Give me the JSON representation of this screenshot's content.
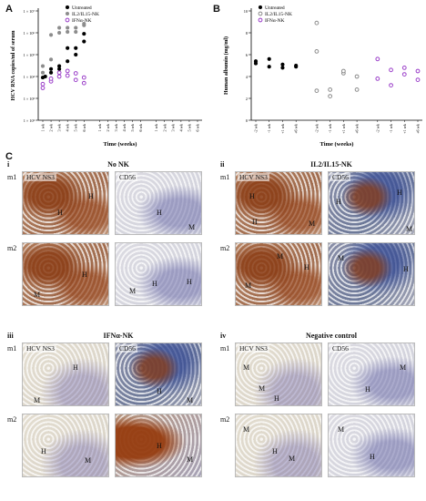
{
  "panel_labels": {
    "a": "A",
    "b": "B",
    "c": "C"
  },
  "colors": {
    "untreated": "#000000",
    "il2": "#8c8c8c",
    "ifn": "#9b3fc9",
    "he_bg": "#e6e1d6",
    "ns3_bg": "#e8ddd0",
    "cd56_bg": "#d7dbe4",
    "brown": "#8a3b13",
    "blue": "#4a5a9a"
  },
  "chart_data": [
    {
      "type": "scatter",
      "panel": "A",
      "ylabel": "HCV RNA copies/ml of serum",
      "xlabel": "Time (weeks)",
      "yscale": "log",
      "ylim": [
        100,
        10000000
      ],
      "ytick_labels": [
        "1 × 10²",
        "1 × 10³",
        "1 × 10⁴",
        "1 × 10⁵",
        "1 × 10⁶",
        "1 × 10⁷"
      ],
      "yticks": [
        100,
        1000,
        10000,
        100000,
        1000000,
        10000000
      ],
      "x_tick_labels": [
        "1 wk",
        "2 wk",
        "3 wk",
        "4 wk",
        "5 wk",
        "6 wk",
        "1 wk",
        "2 wk",
        "3 wk",
        "4 wk",
        "5 wk",
        "6 wk",
        "1 wk",
        "2 wk",
        "3 wk",
        "4 wk",
        "5 wk",
        "6 wk"
      ],
      "series": [
        {
          "name": "Untreated",
          "color": "#000000",
          "fill": true,
          "points": [
            [
              1,
              9000
            ],
            [
              1.3,
              10000
            ],
            [
              2,
              15000
            ],
            [
              2,
              22000
            ],
            [
              3,
              30000
            ],
            [
              3,
              22000
            ],
            [
              4,
              50000
            ],
            [
              4,
              200000
            ],
            [
              5,
              200000
            ],
            [
              5,
              100000
            ],
            [
              6,
              400000
            ],
            [
              6,
              900000
            ]
          ]
        },
        {
          "name": "IL2/IL15-NK",
          "color": "#8c8c8c",
          "fill": true,
          "points": [
            [
              1,
              15000
            ],
            [
              1,
              30000
            ],
            [
              2,
              60000
            ],
            [
              2,
              800000
            ],
            [
              3,
              1000000
            ],
            [
              3,
              1700000
            ],
            [
              4,
              1700000
            ],
            [
              4,
              1100000
            ],
            [
              5,
              1700000
            ],
            [
              5,
              1100000
            ],
            [
              6,
              2200000
            ],
            [
              6,
              2600000
            ]
          ]
        },
        {
          "name": "IFNα-NK",
          "color": "#9b3fc9",
          "fill": false,
          "points": [
            [
              1,
              3000
            ],
            [
              1,
              4500
            ],
            [
              2,
              6000
            ],
            [
              2,
              8000
            ],
            [
              3,
              15000
            ],
            [
              3,
              10000
            ],
            [
              4,
              18000
            ],
            [
              4,
              11000
            ],
            [
              5,
              14000
            ],
            [
              5,
              7000
            ],
            [
              6,
              9000
            ],
            [
              6,
              5000
            ]
          ]
        }
      ]
    },
    {
      "type": "scatter",
      "panel": "B",
      "ylabel": "Human albumin (mg/ml)",
      "xlabel": "Time (weeks)",
      "ylim": [
        0,
        10
      ],
      "yticks": [
        0,
        2,
        4,
        6,
        8,
        10
      ],
      "ytick_labels": [
        "0",
        "2",
        "4",
        "6",
        "8",
        "10"
      ],
      "x_tick_labels": [
        "-2 wk",
        "-1 wk",
        "+1 wk",
        "+6 wk",
        "-2 wk",
        "-1 wk",
        "+1 wk",
        "+6 wk",
        "-2 wk",
        "-1 wk",
        "+1 wk",
        "+6 wk"
      ],
      "series": [
        {
          "name": "Untreated",
          "color": "#000000",
          "fill": true,
          "points": [
            [
              1,
              5.2
            ],
            [
              1,
              5.4
            ],
            [
              2,
              4.9
            ],
            [
              2,
              5.6
            ],
            [
              3,
              4.8
            ],
            [
              3,
              5.1
            ],
            [
              4,
              4.9
            ],
            [
              4,
              5.0
            ]
          ]
        },
        {
          "name": "IL2/IL15-NK",
          "color": "#8c8c8c",
          "fill": false,
          "points": [
            [
              5,
              8.9
            ],
            [
              5,
              6.3
            ],
            [
              5,
              2.7
            ],
            [
              6,
              2.2
            ],
            [
              6,
              2.8
            ],
            [
              7,
              4.3
            ],
            [
              7,
              4.5
            ],
            [
              8,
              4.0
            ],
            [
              8,
              2.8
            ]
          ]
        },
        {
          "name": "IFNα-NK",
          "color": "#9b3fc9",
          "fill": false,
          "points": [
            [
              9,
              5.6
            ],
            [
              9,
              3.8
            ],
            [
              10,
              3.2
            ],
            [
              10,
              4.6
            ],
            [
              11,
              4.2
            ],
            [
              11,
              4.8
            ],
            [
              12,
              4.5
            ],
            [
              12,
              3.7
            ]
          ]
        }
      ]
    }
  ],
  "section_c": {
    "panels": [
      {
        "roman": "i",
        "title": "No NK",
        "rows": [
          {
            "label": "m1",
            "stains": [
              "HCV NS3",
              "CD56"
            ],
            "types": [
              "ns3_pos",
              "cd56_neg"
            ],
            "marks": [
              [
                [
                  "H",
                  72,
                  22
                ],
                [
                  "H",
                  38,
                  40
                ]
              ],
              [
                [
                  "H",
                  45,
                  40
                ],
                [
                  "M",
                  80,
                  56
                ]
              ]
            ]
          },
          {
            "label": "m2",
            "stains": [
              "",
              ""
            ],
            "types": [
              "ns3_pos",
              "cd56_neg"
            ],
            "marks": [
              [
                [
                  "H",
                  65,
                  30
                ],
                [
                  "M",
                  12,
                  52
                ]
              ],
              [
                [
                  "H",
                  40,
                  40
                ],
                [
                  "M",
                  15,
                  48
                ],
                [
                  "H",
                  78,
                  38
                ]
              ]
            ]
          }
        ]
      },
      {
        "roman": "ii",
        "title": "IL2/IL15-NK",
        "rows": [
          {
            "label": "m1",
            "stains": [
              "HCV NS3",
              "CD56"
            ],
            "types": [
              "ns3_pos",
              "cd56_pos"
            ],
            "marks": [
              [
                [
                  "H",
                  15,
                  22
                ],
                [
                  "H",
                  18,
                  50
                ],
                [
                  "M",
                  80,
                  52
                ]
              ],
              [
                [
                  "H",
                  8,
                  28
                ],
                [
                  "H",
                  75,
                  18
                ],
                [
                  "M",
                  85,
                  58
                ]
              ]
            ]
          },
          {
            "label": "m2",
            "stains": [
              "",
              ""
            ],
            "types": [
              "ns3_pos",
              "cd56_pos"
            ],
            "marks": [
              [
                [
                  "M",
                  45,
                  10
                ],
                [
                  "H",
                  75,
                  22
                ],
                [
                  "M",
                  10,
                  42
                ]
              ],
              [
                [
                  "M",
                  10,
                  12
                ],
                [
                  "H",
                  82,
                  24
                ]
              ]
            ]
          }
        ]
      },
      {
        "roman": "iii",
        "title": "IFNα-NK",
        "rows": [
          {
            "label": "m1",
            "stains": [
              "HCV NS3",
              "CD56"
            ],
            "types": [
              "ns3_neg",
              "cd56_pos"
            ],
            "marks": [
              [
                [
                  "H",
                  55,
                  22
                ],
                [
                  "M",
                  12,
                  58
                ]
              ],
              [
                [
                  "H",
                  45,
                  48
                ],
                [
                  "M",
                  78,
                  58
                ]
              ]
            ]
          },
          {
            "label": "m2",
            "stains": [
              "",
              ""
            ],
            "types": [
              "ns3_neg",
              "cd56_brown"
            ],
            "marks": [
              [
                [
                  "H",
                  20,
                  36
                ],
                [
                  "M",
                  68,
                  46
                ]
              ],
              [
                [
                  "H",
                  45,
                  30
                ],
                [
                  "M",
                  78,
                  45
                ]
              ]
            ]
          }
        ]
      },
      {
        "roman": "iv",
        "title": "Negative control",
        "rows": [
          {
            "label": "m1",
            "stains": [
              "HCV NS3",
              "CD56"
            ],
            "types": [
              "ns3_neg",
              "cd56_neg"
            ],
            "marks": [
              [
                [
                  "M",
                  8,
                  22
                ],
                [
                  "M",
                  25,
                  45
                ],
                [
                  "H",
                  42,
                  56
                ]
              ],
              [
                [
                  "M",
                  78,
                  22
                ],
                [
                  "H",
                  40,
                  46
                ]
              ]
            ]
          },
          {
            "label": "m2",
            "stains": [
              "",
              ""
            ],
            "types": [
              "ns3_neg",
              "cd56_neg"
            ],
            "marks": [
              [
                [
                  "M",
                  8,
                  12
                ],
                [
                  "H",
                  40,
                  36
                ],
                [
                  "M",
                  58,
                  44
                ]
              ],
              [
                [
                  "M",
                  10,
                  12
                ],
                [
                  "H",
                  45,
                  42
                ]
              ]
            ]
          }
        ]
      }
    ]
  }
}
